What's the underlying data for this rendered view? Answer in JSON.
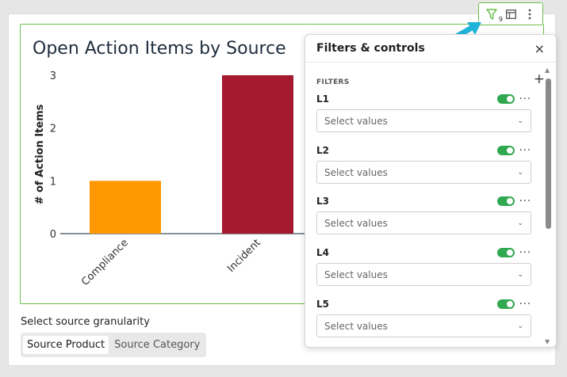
{
  "chart": {
    "title": "Open Action Items by Source"
  },
  "chart_data": {
    "type": "bar",
    "title": "Open Action Items by Source",
    "ylabel": "# of Action Items",
    "xlabel": "",
    "categories": [
      "Compliance",
      "Incident"
    ],
    "values": [
      1,
      3
    ],
    "colors": [
      "#ff9800",
      "#a51a2f"
    ],
    "ylim": [
      0,
      3
    ],
    "yticks": [
      0,
      1,
      2,
      3
    ],
    "grid": false
  },
  "toolbar": {
    "filter_icon": "filter-icon",
    "filter_count": "9",
    "table_icon": "table-icon",
    "more_icon": "more-vertical-icon"
  },
  "granularity": {
    "label": "Select source granularity",
    "options": [
      "Source Product",
      "Source Category"
    ],
    "selected": "Source Product"
  },
  "panel": {
    "title": "Filters & controls",
    "close_label": "×",
    "section_label": "FILTERS",
    "add_label": "+",
    "filters": [
      {
        "name": "L1",
        "placeholder": "Select values",
        "enabled": true
      },
      {
        "name": "L2",
        "placeholder": "Select values",
        "enabled": true
      },
      {
        "name": "L3",
        "placeholder": "Select values",
        "enabled": true
      },
      {
        "name": "L4",
        "placeholder": "Select values",
        "enabled": true
      },
      {
        "name": "L5",
        "placeholder": "Select values",
        "enabled": true
      }
    ]
  },
  "colors": {
    "accent_green": "#6cbf4c",
    "toggle_green": "#2fa84f",
    "arrow_blue": "#1fb4d8"
  }
}
